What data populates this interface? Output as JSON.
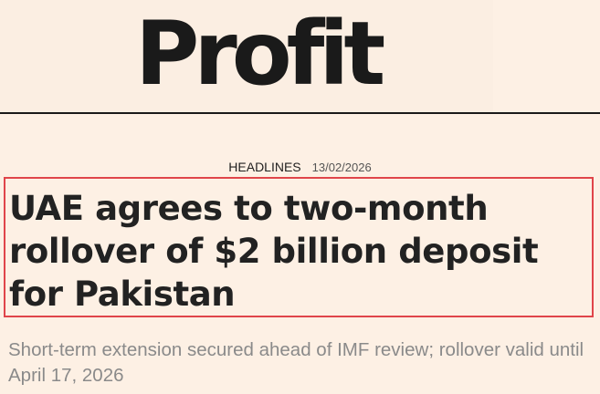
{
  "masthead": {
    "logo_text": "Profit"
  },
  "article": {
    "category": "HEADLINES",
    "date": "13/02/2026",
    "title": "UAE agrees to two-month rollover of $2 billion deposit for Pakistan",
    "subtitle": "Short-term extension secured ahead of IMF review; rollover valid until April 17, 2026"
  },
  "colors": {
    "background": "#fdf0e4",
    "text": "#222222",
    "subtitle_text": "#8a8a8a",
    "highlight_border": "#e0454a"
  }
}
